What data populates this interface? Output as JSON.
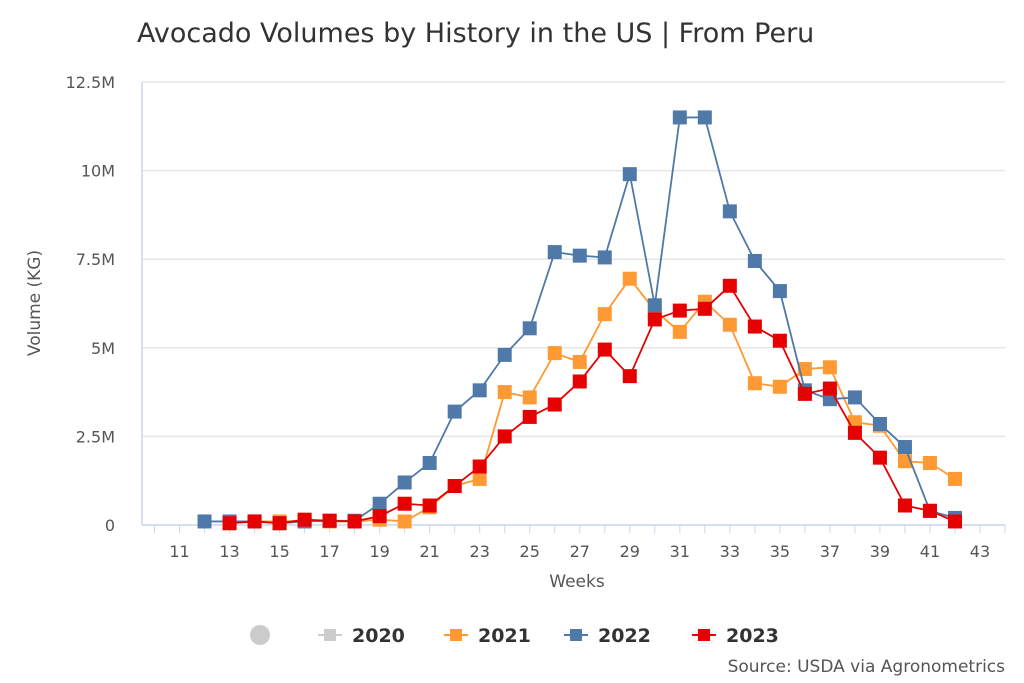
{
  "chart_data": {
    "type": "line",
    "title": "Avocado Volumes by History in the US | From Peru",
    "xlabel": "Weeks",
    "ylabel": "Volume (KG)",
    "xlim": [
      9.5,
      44
    ],
    "ylim": [
      0,
      12500000
    ],
    "x_ticks": [
      "11",
      "13",
      "15",
      "17",
      "19",
      "21",
      "23",
      "25",
      "27",
      "29",
      "31",
      "33",
      "35",
      "37",
      "39",
      "41",
      "43"
    ],
    "y_ticks": [
      "0",
      "2.5M",
      "5M",
      "7.5M",
      "10M",
      "12.5M"
    ],
    "y_tick_values": [
      0,
      2500000,
      5000000,
      7500000,
      10000000,
      12500000
    ],
    "grid": "horizontal",
    "legend": "bottom",
    "series": [
      {
        "name": "2020",
        "color": "#cccccc",
        "hidden": true,
        "x": [],
        "values": []
      },
      {
        "name": "2021",
        "color": "#ff9933",
        "x": [
          13,
          14,
          15,
          16,
          17,
          18,
          19,
          20,
          21,
          22,
          23,
          24,
          25,
          26,
          27,
          28,
          29,
          30,
          31,
          32,
          33,
          34,
          35,
          36,
          37,
          38,
          39,
          40,
          41,
          42
        ],
        "values": [
          50000,
          100000,
          100000,
          120000,
          100000,
          100000,
          150000,
          100000,
          500000,
          1100000,
          1300000,
          3750000,
          3600000,
          4850000,
          4600000,
          5950000,
          6950000,
          6050000,
          5450000,
          6300000,
          5650000,
          4000000,
          3900000,
          4400000,
          4450000,
          2900000,
          2800000,
          1800000,
          1750000,
          1300000
        ]
      },
      {
        "name": "2022",
        "color": "#4f79a8",
        "x": [
          12,
          13,
          14,
          15,
          16,
          17,
          18,
          19,
          20,
          21,
          22,
          23,
          24,
          25,
          26,
          27,
          28,
          29,
          30,
          31,
          32,
          33,
          34,
          35,
          36,
          37,
          38,
          39,
          40,
          41,
          42
        ],
        "values": [
          100000,
          100000,
          100000,
          50000,
          100000,
          120000,
          120000,
          600000,
          1200000,
          1750000,
          3200000,
          3800000,
          4800000,
          5550000,
          7700000,
          7600000,
          7550000,
          9900000,
          6200000,
          11500000,
          11500000,
          8850000,
          7450000,
          6600000,
          3800000,
          3550000,
          3600000,
          2850000,
          2200000,
          400000,
          200000
        ]
      },
      {
        "name": "2023",
        "color": "#e60000",
        "x": [
          13,
          14,
          15,
          16,
          17,
          18,
          19,
          20,
          21,
          22,
          23,
          24,
          25,
          26,
          27,
          28,
          29,
          30,
          31,
          32,
          33,
          34,
          35,
          36,
          37,
          38,
          39,
          40,
          41,
          42
        ],
        "values": [
          50000,
          100000,
          50000,
          150000,
          120000,
          100000,
          250000,
          600000,
          550000,
          1100000,
          1650000,
          2500000,
          3050000,
          3400000,
          4050000,
          4950000,
          4200000,
          5800000,
          6050000,
          6100000,
          6750000,
          5600000,
          5200000,
          3700000,
          3850000,
          2600000,
          1900000,
          550000,
          400000,
          100000
        ]
      }
    ],
    "source": "Source: USDA via Agronometrics"
  }
}
